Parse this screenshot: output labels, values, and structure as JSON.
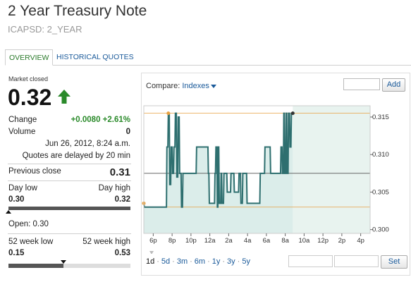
{
  "header": {
    "title": "2 Year Treasury Note",
    "symbol": "ICAPSD: 2_YEAR"
  },
  "tabs": [
    {
      "label": "OVERVIEW"
    },
    {
      "label": "HISTORICAL QUOTES"
    }
  ],
  "quote": {
    "market_status": "Market closed",
    "price": "0.32",
    "change_label": "Change",
    "change_value": "+0.0080 +2.61%",
    "volume_label": "Volume",
    "volume_value": "0",
    "timestamp": "Jun 26, 2012, 8:24 a.m.",
    "delay_note": "Quotes are delayed by 20 min",
    "previous_close_label": "Previous close",
    "previous_close_value": "0.31",
    "day_low_label": "Day low",
    "day_high_label": "Day high",
    "day_low_value": "0.30",
    "day_high_value": "0.32",
    "day_range_fraction": 1.0,
    "open_label": "Open:",
    "open_value": "0.30",
    "week52_low_label": "52 week low",
    "week52_high_label": "52 week high",
    "week52_low_value": "0.15",
    "week52_high_value": "0.53",
    "week52_fraction": 0.45
  },
  "chart_controls": {
    "compare_label": "Compare:",
    "compare_value": "Indexes",
    "add_label": "Add",
    "set_label": "Set",
    "ranges": [
      "1d",
      "5d",
      "3m",
      "6m",
      "1y",
      "3y",
      "5y"
    ],
    "selected_range": "1d"
  },
  "colors": {
    "line": "#2e6f6f",
    "area": "#cfe7e3",
    "shade": "#e8f3ef",
    "ref_line": "#e8a040",
    "up_arrow": "#2a8a2a",
    "link": "#1a5a9a"
  },
  "chart_data": {
    "type": "line",
    "x_tick_labels": [
      "6p",
      "8p",
      "10p",
      "12a",
      "2a",
      "4a",
      "6a",
      "8a",
      "10a",
      "12p",
      "2p",
      "4p"
    ],
    "y_tick_labels": [
      "0.315",
      "0.310",
      "0.305",
      "0.300"
    ],
    "ylim": [
      0.2995,
      0.3165
    ],
    "x_range_hours": [
      17,
      41
    ],
    "previous_close": 0.3075,
    "day_high": 0.3155,
    "day_low": 0.303,
    "series": [
      {
        "x_hours": [
          17,
          17.05,
          19.4,
          19.45,
          19.55,
          19.6,
          19.7,
          19.75,
          19.85,
          19.9,
          20.0,
          20.05,
          20.15,
          20.2,
          20.3,
          20.35,
          20.45,
          20.5,
          20.6,
          20.65,
          20.75,
          20.8,
          20.95,
          21.0,
          21.1,
          21.15,
          22.55,
          22.6,
          23.8,
          23.85,
          23.9,
          23.95,
          24.5,
          24.55,
          24.6,
          24.65,
          24.75,
          24.8,
          24.85,
          24.9,
          24.95,
          25.0,
          25.15,
          25.2,
          25.25,
          25.3,
          25.45,
          25.5,
          25.8,
          25.85,
          26.2,
          26.25,
          26.55,
          26.6,
          27.05,
          27.1,
          27.25,
          27.3,
          27.45,
          27.5,
          27.9,
          27.95,
          29.3,
          29.35,
          29.8,
          29.85,
          30.4,
          30.45,
          31.5,
          31.55,
          31.65,
          31.7,
          31.8,
          31.85,
          31.9,
          31.95,
          32.05,
          32.1,
          32.15,
          32.2,
          32.3,
          32.35,
          32.45,
          32.5,
          32.6,
          32.65,
          32.72,
          32.8
        ],
        "y": [
          0.3035,
          0.303,
          0.303,
          0.311,
          0.311,
          0.3155,
          0.3155,
          0.306,
          0.306,
          0.311,
          0.311,
          0.3075,
          0.3075,
          0.311,
          0.311,
          0.3155,
          0.3155,
          0.307,
          0.307,
          0.315,
          0.315,
          0.3075,
          0.3075,
          0.303,
          0.303,
          0.3075,
          0.3075,
          0.311,
          0.311,
          0.3075,
          0.3075,
          0.3035,
          0.3035,
          0.3075,
          0.3075,
          0.311,
          0.311,
          0.303,
          0.303,
          0.311,
          0.311,
          0.3035,
          0.3035,
          0.3075,
          0.3075,
          0.3035,
          0.3035,
          0.3075,
          0.3075,
          0.305,
          0.305,
          0.3075,
          0.3075,
          0.305,
          0.305,
          0.3075,
          0.3075,
          0.3035,
          0.3035,
          0.3075,
          0.3075,
          0.3035,
          0.3035,
          0.3075,
          0.3075,
          0.311,
          0.311,
          0.3075,
          0.3075,
          0.311,
          0.311,
          0.3075,
          0.3075,
          0.3155,
          0.3155,
          0.3075,
          0.3075,
          0.3155,
          0.3155,
          0.3075,
          0.3075,
          0.3155,
          0.3155,
          0.311,
          0.311,
          0.3155,
          0.3155,
          0.3155
        ]
      }
    ]
  }
}
